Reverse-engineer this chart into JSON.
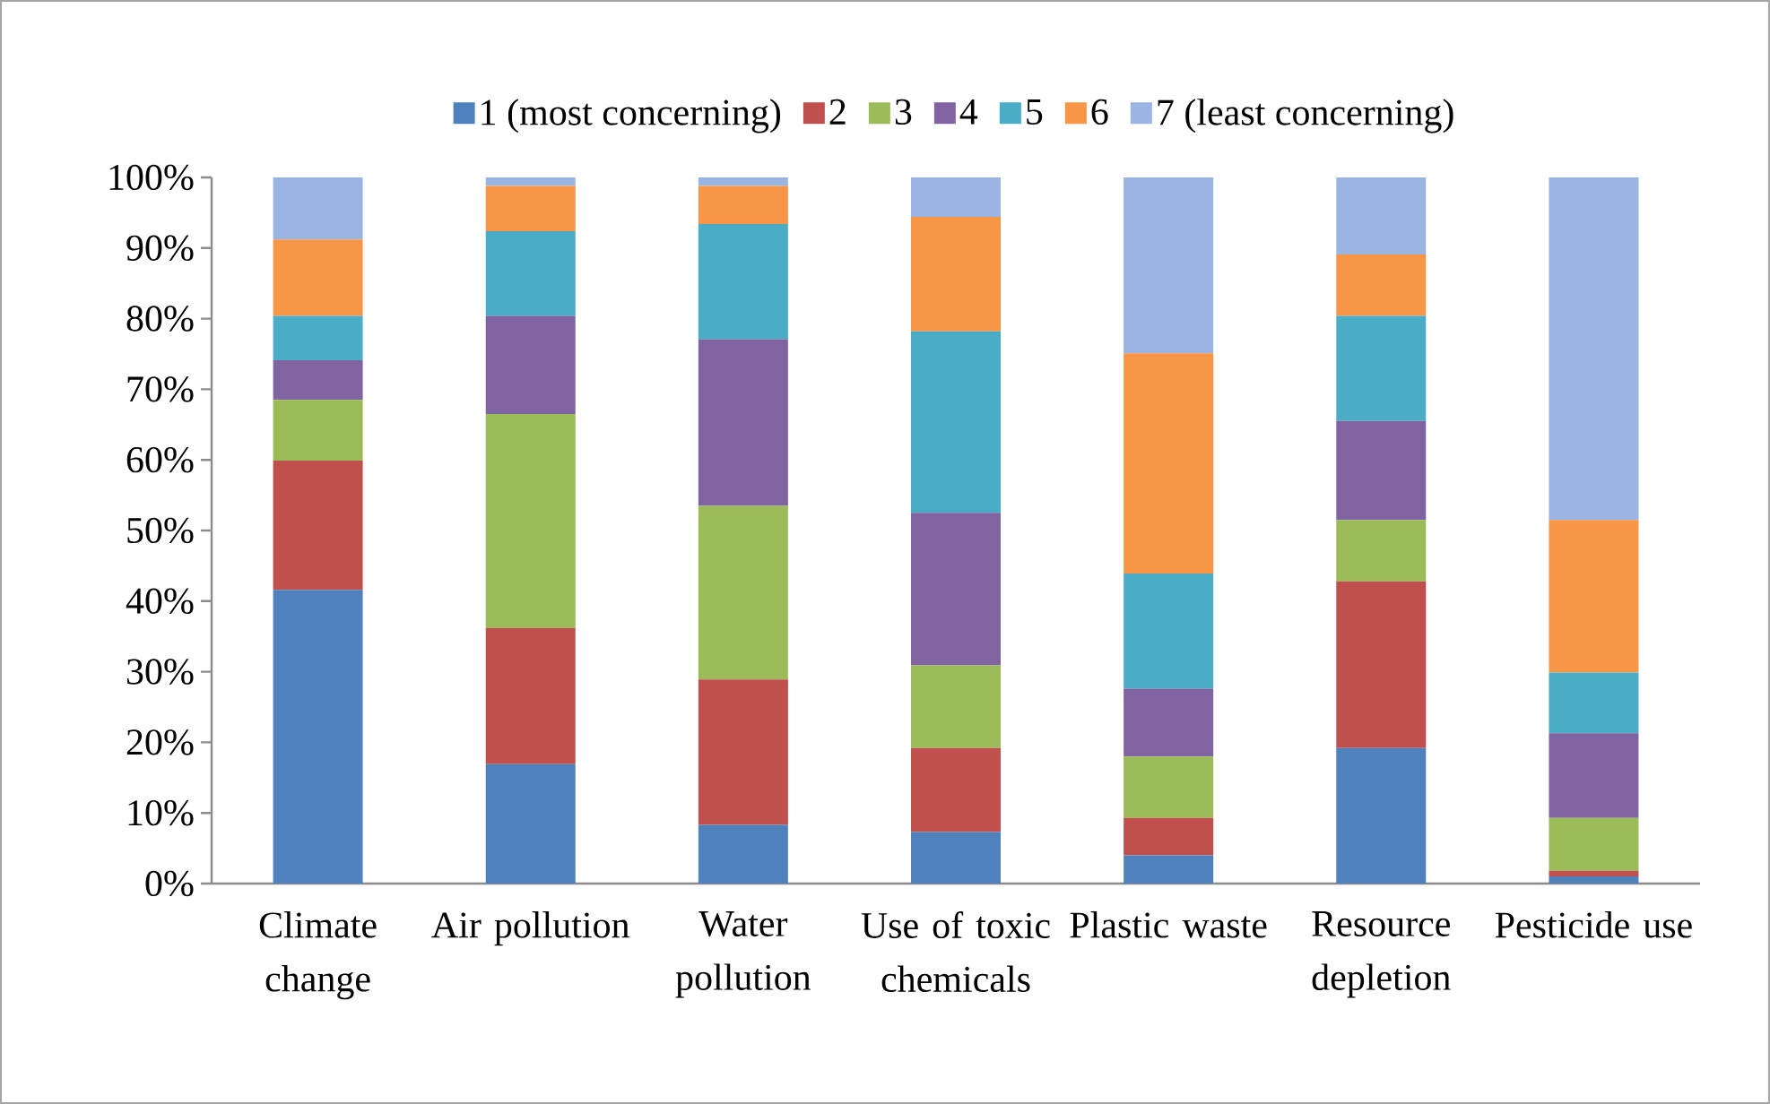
{
  "chart_data": {
    "type": "bar",
    "stacked": true,
    "categories": [
      "Climate change",
      "Air pollution",
      "Water pollution",
      "Use of toxic chemicals",
      "Plastic waste",
      "Resource depletion",
      "Pesticide use"
    ],
    "series": [
      {
        "name": "1 (most concerning)",
        "color": "#4f81bd",
        "values": [
          41.6,
          16.9,
          8.3,
          7.3,
          4.0,
          19.2,
          1.0
        ]
      },
      {
        "name": "2",
        "color": "#c0504d",
        "values": [
          18.3,
          19.3,
          20.6,
          11.9,
          5.3,
          23.6,
          0.8
        ]
      },
      {
        "name": "3",
        "color": "#9bbb59",
        "values": [
          8.6,
          30.3,
          24.6,
          11.7,
          8.7,
          8.7,
          7.5
        ]
      },
      {
        "name": "4",
        "color": "#8064a2",
        "values": [
          5.6,
          13.9,
          23.6,
          21.6,
          9.6,
          14.0,
          12.0
        ]
      },
      {
        "name": "5",
        "color": "#4bacc6",
        "values": [
          6.3,
          12.0,
          16.3,
          25.7,
          16.3,
          14.9,
          8.6
        ]
      },
      {
        "name": "6",
        "color": "#f79646",
        "values": [
          10.8,
          6.4,
          5.4,
          16.2,
          31.2,
          8.7,
          21.6
        ]
      },
      {
        "name": "7 (least concerning)",
        "color": "#9bb5e3",
        "values": [
          8.8,
          1.2,
          1.2,
          5.6,
          24.9,
          10.9,
          48.5
        ]
      }
    ],
    "ylim": [
      0,
      100
    ],
    "yticks": [
      {
        "value": 0,
        "label": "0%"
      },
      {
        "value": 10,
        "label": "10%"
      },
      {
        "value": 20,
        "label": "20%"
      },
      {
        "value": 30,
        "label": "30%"
      },
      {
        "value": 40,
        "label": "40%"
      },
      {
        "value": 50,
        "label": "50%"
      },
      {
        "value": 60,
        "label": "60%"
      },
      {
        "value": 70,
        "label": "70%"
      },
      {
        "value": 80,
        "label": "80%"
      },
      {
        "value": 90,
        "label": "90%"
      },
      {
        "value": 100,
        "label": "100%"
      }
    ],
    "legend": "top",
    "grid": false
  }
}
